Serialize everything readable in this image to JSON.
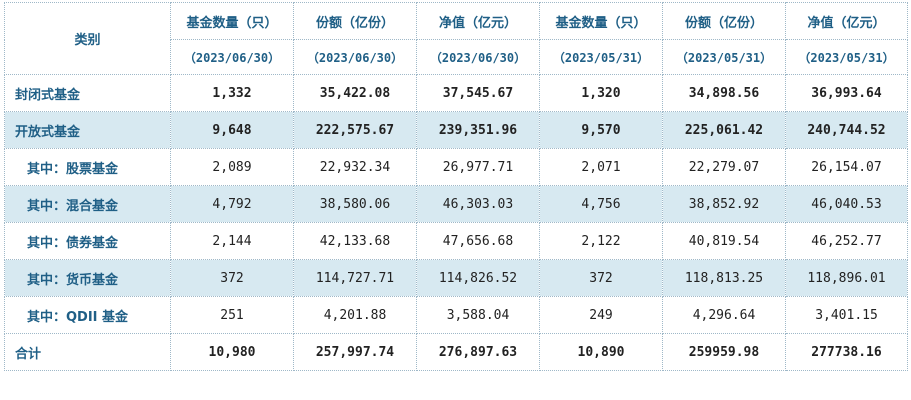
{
  "header": {
    "category_label": "类别",
    "columns": [
      {
        "title": "基金数量（只）",
        "date": "（2023/06/30）"
      },
      {
        "title": "份额（亿份）",
        "date": "（2023/06/30）"
      },
      {
        "title": "净值（亿元）",
        "date": "（2023/06/30）"
      },
      {
        "title": "基金数量（只）",
        "date": "（2023/05/31）"
      },
      {
        "title": "份额（亿份）",
        "date": "（2023/05/31）"
      },
      {
        "title": "净值（亿元）",
        "date": "（2023/05/31）"
      }
    ]
  },
  "rows": [
    {
      "label": "封闭式基金",
      "values": [
        "1,332",
        "35,422.08",
        "37,545.67",
        "1,320",
        "34,898.56",
        "36,993.64"
      ]
    },
    {
      "label": "开放式基金",
      "values": [
        "9,648",
        "222,575.67",
        "239,351.96",
        "9,570",
        "225,061.42",
        "240,744.52"
      ]
    },
    {
      "label": "其中：股票基金",
      "values": [
        "2,089",
        "22,932.34",
        "26,977.71",
        "2,071",
        "22,279.07",
        "26,154.07"
      ]
    },
    {
      "label": "其中：混合基金",
      "values": [
        "4,792",
        "38,580.06",
        "46,303.03",
        "4,756",
        "38,852.92",
        "46,040.53"
      ]
    },
    {
      "label": "其中：债券基金",
      "values": [
        "2,144",
        "42,133.68",
        "47,656.68",
        "2,122",
        "40,819.54",
        "46,252.77"
      ]
    },
    {
      "label": "其中：货币基金",
      "values": [
        "372",
        "114,727.71",
        "114,826.52",
        "372",
        "118,813.25",
        "118,896.01"
      ]
    },
    {
      "label": "其中：QDII 基金",
      "values": [
        "251",
        "4,201.88",
        "3,588.04",
        "249",
        "4,296.64",
        "3,401.15"
      ]
    },
    {
      "label": "合计",
      "values": [
        "10,980",
        "257,997.74",
        "276,897.63",
        "10,890",
        "259959.98",
        "277738.16"
      ]
    }
  ]
}
